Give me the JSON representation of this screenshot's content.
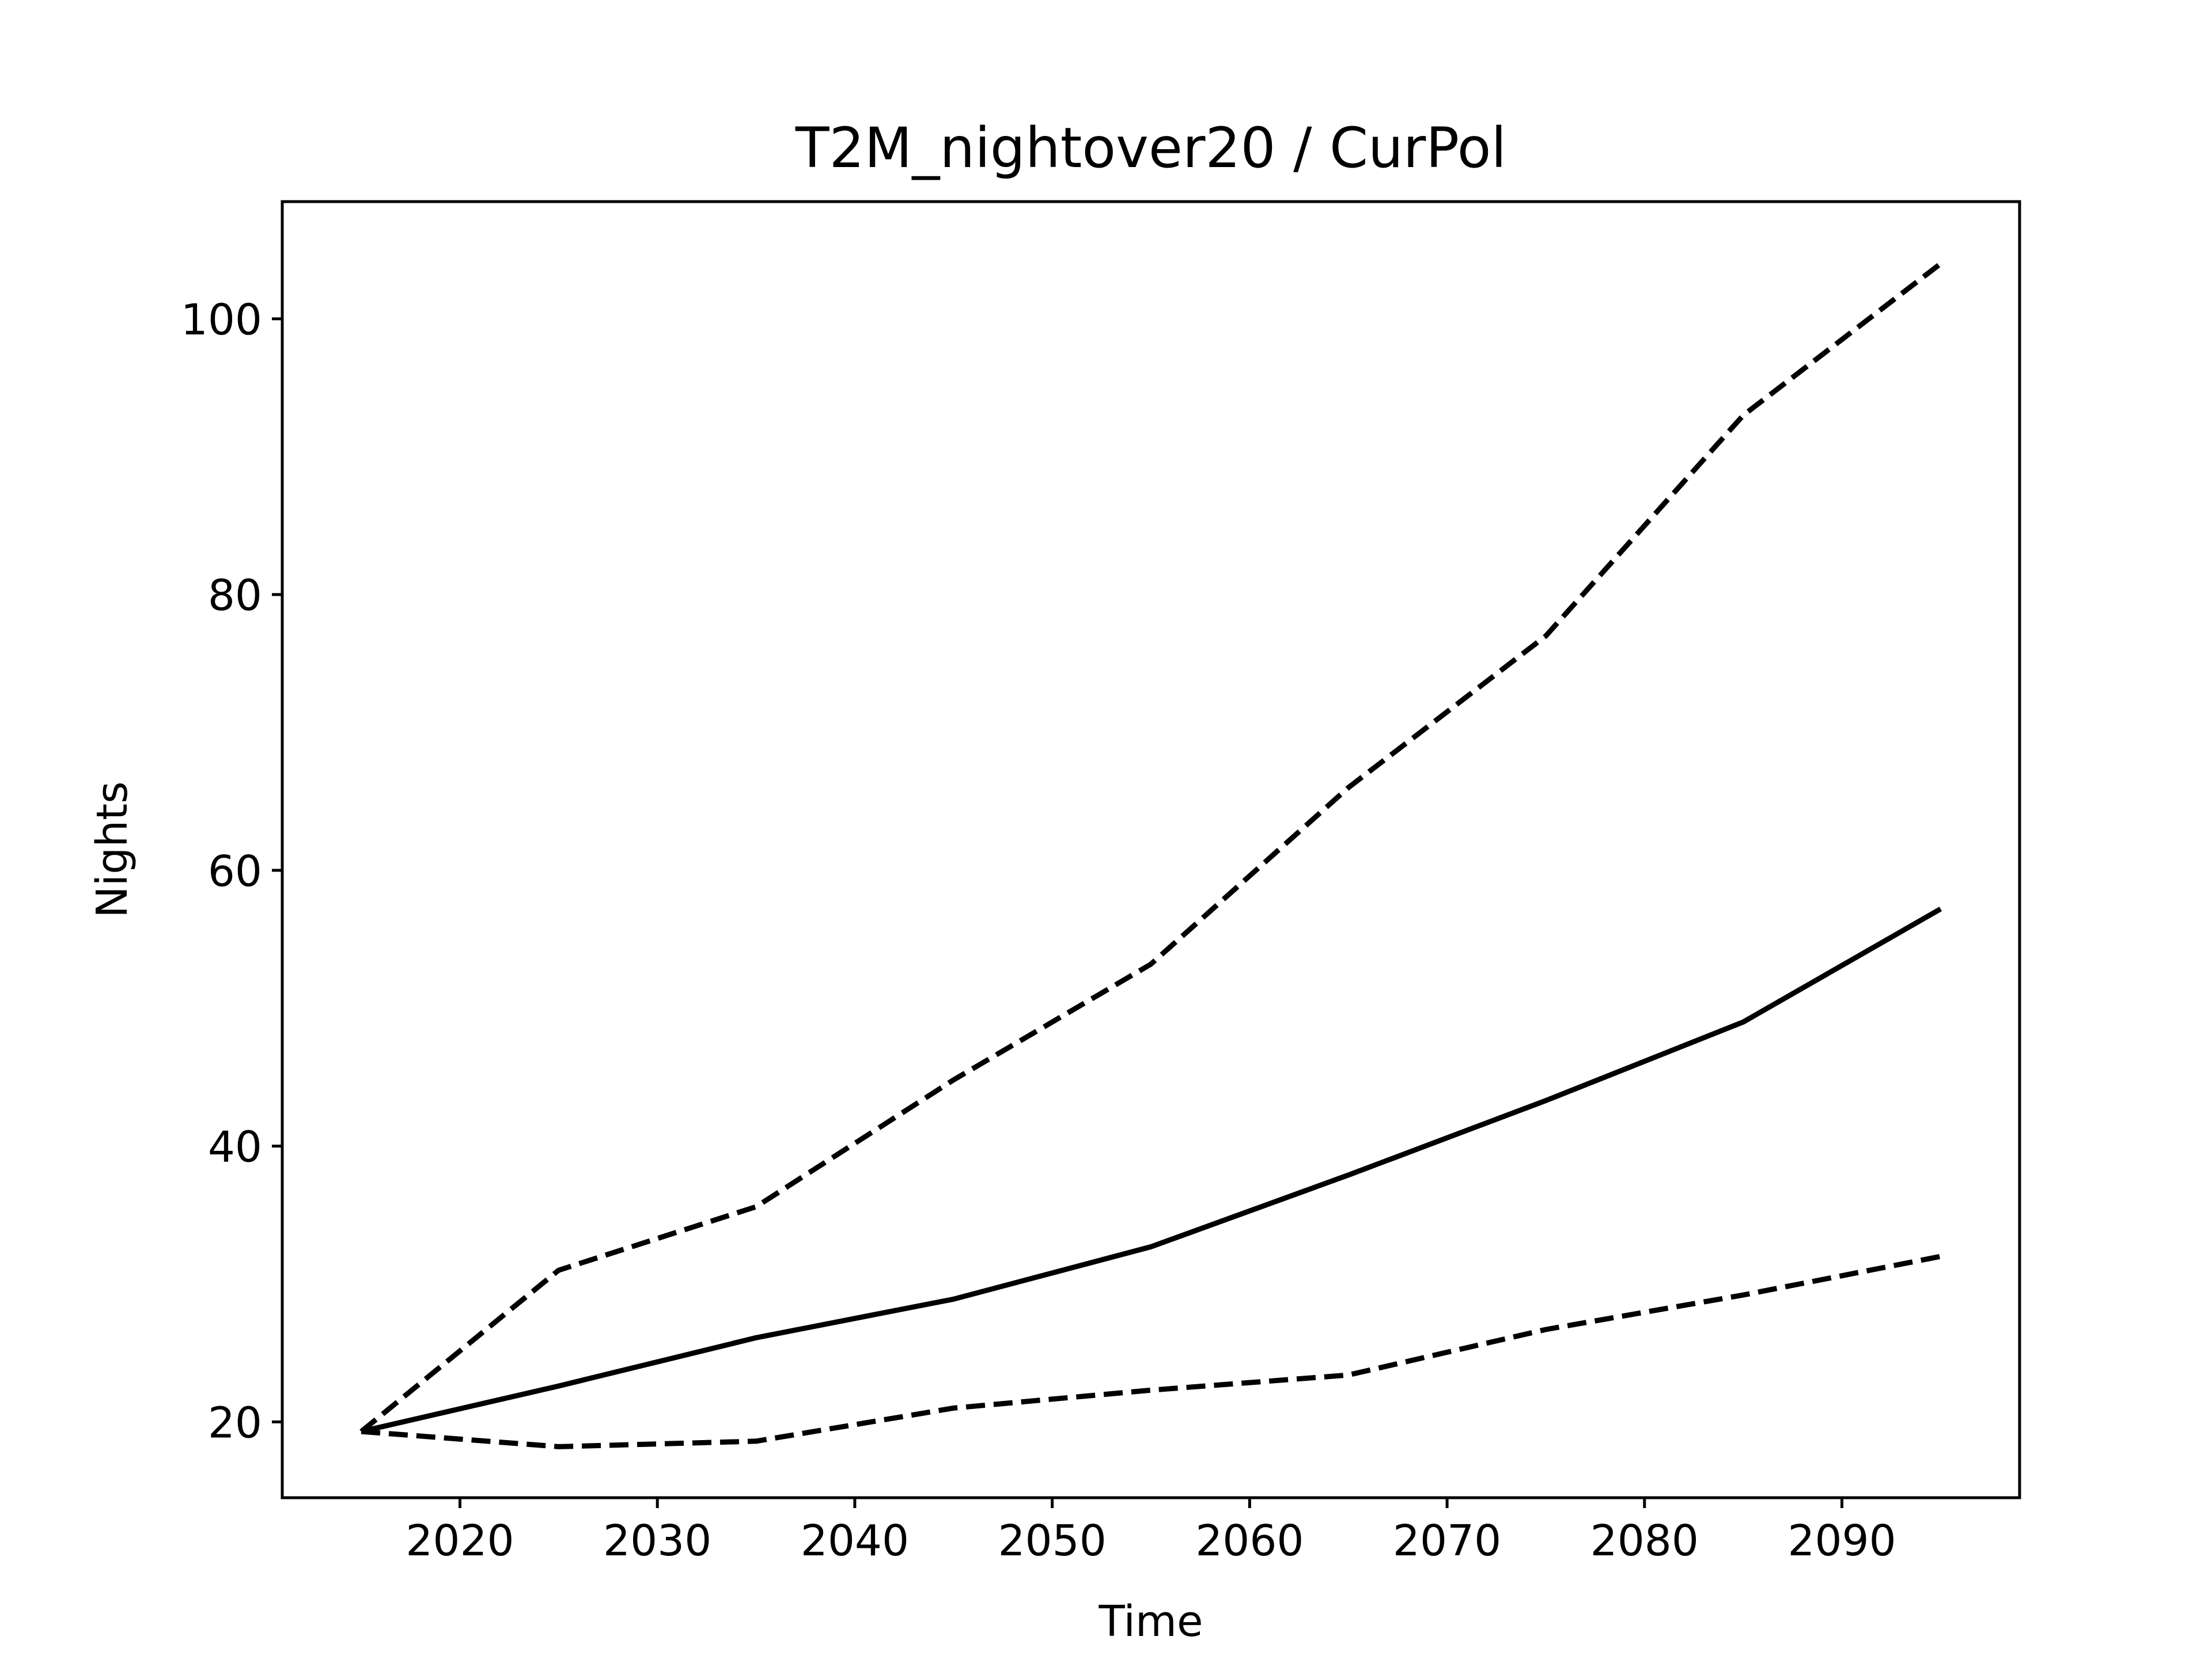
{
  "chart_data": {
    "type": "line",
    "title": "T2M_nightover20 / CurPol",
    "xlabel": "Time",
    "ylabel": "Nights",
    "x": [
      2015,
      2025,
      2035,
      2045,
      2055,
      2065,
      2075,
      2085,
      2095
    ],
    "xlim": [
      2011,
      2099
    ],
    "ylim": [
      14.5,
      108.5
    ],
    "xticks": [
      2020,
      2030,
      2040,
      2050,
      2060,
      2070,
      2080,
      2090
    ],
    "xtick_labels": [
      "2020",
      "2030",
      "2040",
      "2050",
      "2060",
      "2070",
      "2080",
      "2090"
    ],
    "yticks": [
      20,
      40,
      60,
      80,
      100
    ],
    "ytick_labels": [
      "20",
      "40",
      "60",
      "80",
      "100"
    ],
    "grid": false,
    "legend": "none",
    "color": "#000000",
    "series": [
      {
        "style": "dashed",
        "values": [
          19.3,
          31.0,
          35.6,
          44.8,
          53.2,
          66.0,
          77.0,
          93.0,
          104.0
        ]
      },
      {
        "style": "solid",
        "values": [
          19.3,
          22.6,
          26.1,
          28.9,
          32.7,
          37.9,
          43.3,
          49.0,
          57.2
        ]
      },
      {
        "style": "dashed",
        "values": [
          19.3,
          18.2,
          18.6,
          21.0,
          22.3,
          23.4,
          26.7,
          29.2,
          32.0
        ]
      }
    ]
  }
}
